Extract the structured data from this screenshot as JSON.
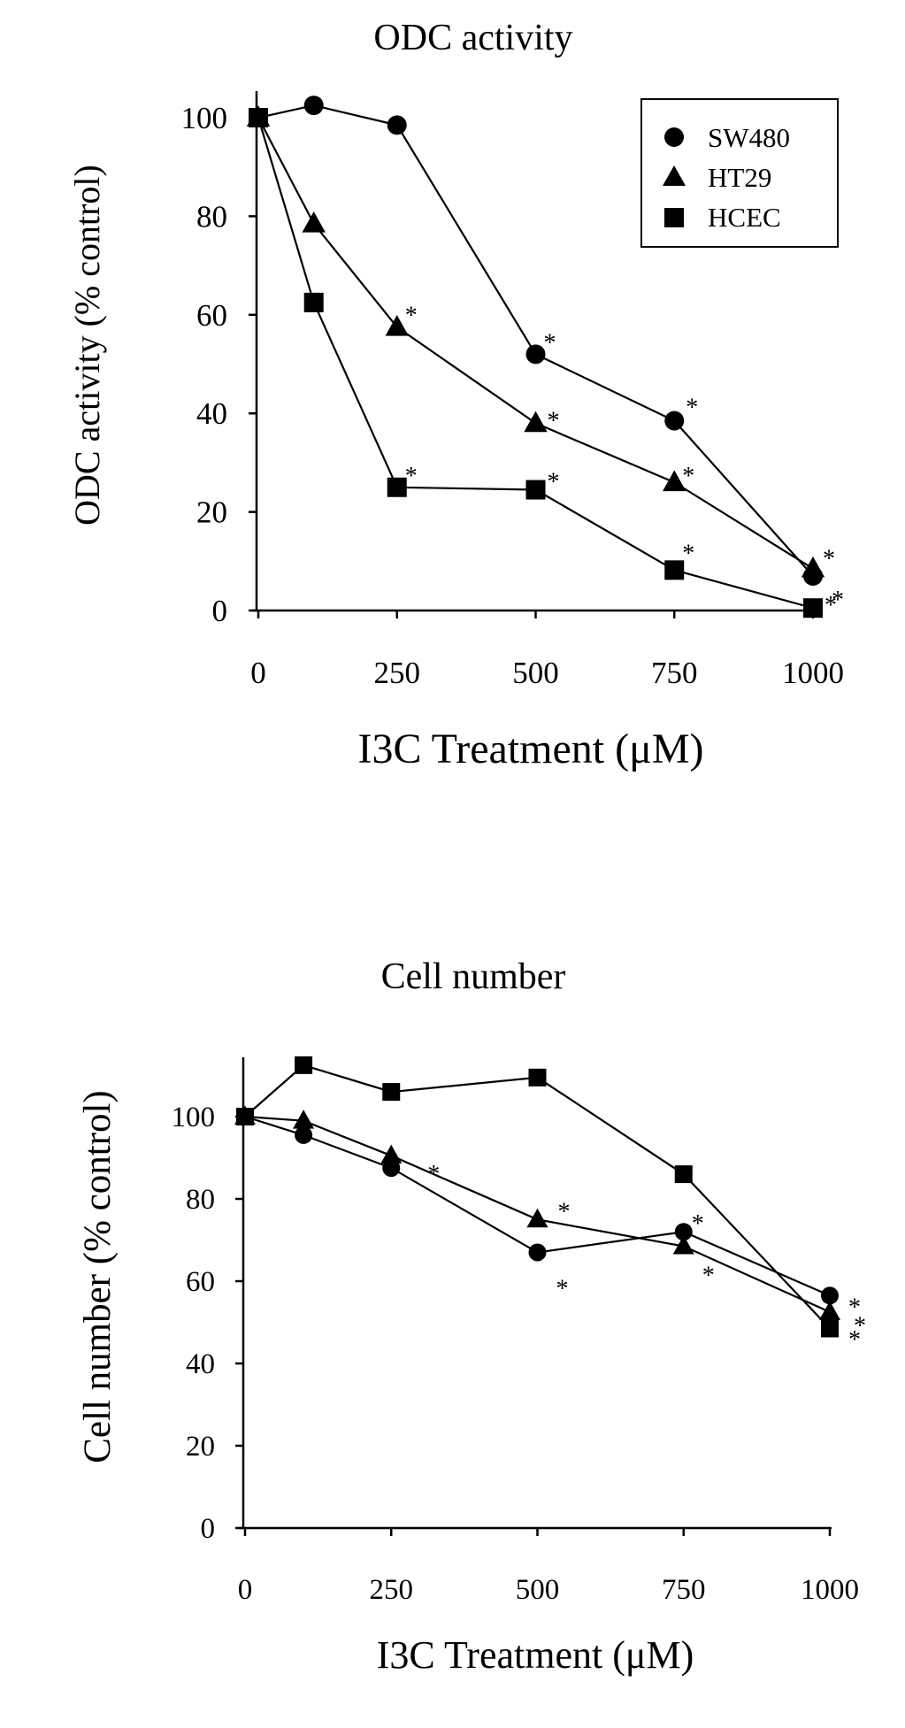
{
  "chart_data": [
    {
      "type": "line",
      "title": "ODC activity",
      "xlabel": "I3C Treatment (μM)",
      "ylabel": "ODC activity (% control)",
      "x_ticks": [
        "0",
        "250",
        "500",
        "750",
        "1000"
      ],
      "y_ticks": [
        "0",
        "20",
        "40",
        "60",
        "80",
        "100"
      ],
      "xlim": [
        0,
        1000
      ],
      "ylim": [
        0,
        100
      ],
      "legend_position": "top-right",
      "series": [
        {
          "name": "SW480",
          "marker": "circle",
          "x": [
            0,
            100,
            250,
            500,
            750,
            1000
          ],
          "y": [
            100,
            102.5,
            98.5,
            52,
            38.5,
            7
          ],
          "stars": [
            false,
            false,
            false,
            true,
            true,
            true
          ]
        },
        {
          "name": "HT29",
          "marker": "triangle",
          "x": [
            0,
            100,
            250,
            500,
            750,
            1000
          ],
          "y": [
            100,
            78.5,
            57.5,
            38,
            26,
            8.5
          ],
          "stars": [
            false,
            false,
            true,
            true,
            true,
            true
          ]
        },
        {
          "name": "HCEC",
          "marker": "square",
          "x": [
            0,
            100,
            250,
            500,
            750,
            1000
          ],
          "y": [
            100,
            62.5,
            25,
            24.5,
            8.2,
            0.5
          ],
          "stars": [
            false,
            false,
            true,
            true,
            true,
            true
          ]
        }
      ],
      "star_symbol": "*"
    },
    {
      "type": "line",
      "title": "Cell number",
      "xlabel": "I3C Treatment (μM)",
      "ylabel": "Cell number (% control)",
      "x_ticks": [
        "0",
        "250",
        "500",
        "750",
        "1000"
      ],
      "y_ticks": [
        "0",
        "20",
        "40",
        "60",
        "80",
        "100"
      ],
      "xlim": [
        0,
        1000
      ],
      "ylim": [
        0,
        115
      ],
      "series": [
        {
          "name": "SW480",
          "marker": "circle",
          "x": [
            0,
            100,
            250,
            500,
            750,
            1000
          ],
          "y": [
            100,
            95.5,
            87.5,
            67,
            72,
            56.5
          ],
          "stars": [
            false,
            false,
            false,
            true,
            true,
            true
          ]
        },
        {
          "name": "HT29",
          "marker": "triangle",
          "x": [
            0,
            100,
            250,
            500,
            750,
            1000
          ],
          "y": [
            100,
            99,
            90.5,
            75,
            68.5,
            52.5
          ],
          "stars": [
            false,
            false,
            true,
            true,
            true,
            true
          ]
        },
        {
          "name": "HCEC",
          "marker": "square",
          "x": [
            0,
            100,
            250,
            500,
            750,
            1000
          ],
          "y": [
            100,
            112.5,
            106,
            109.5,
            86,
            48.5
          ],
          "stars": [
            false,
            false,
            false,
            false,
            false,
            true
          ]
        }
      ],
      "star_symbol": "*"
    }
  ]
}
